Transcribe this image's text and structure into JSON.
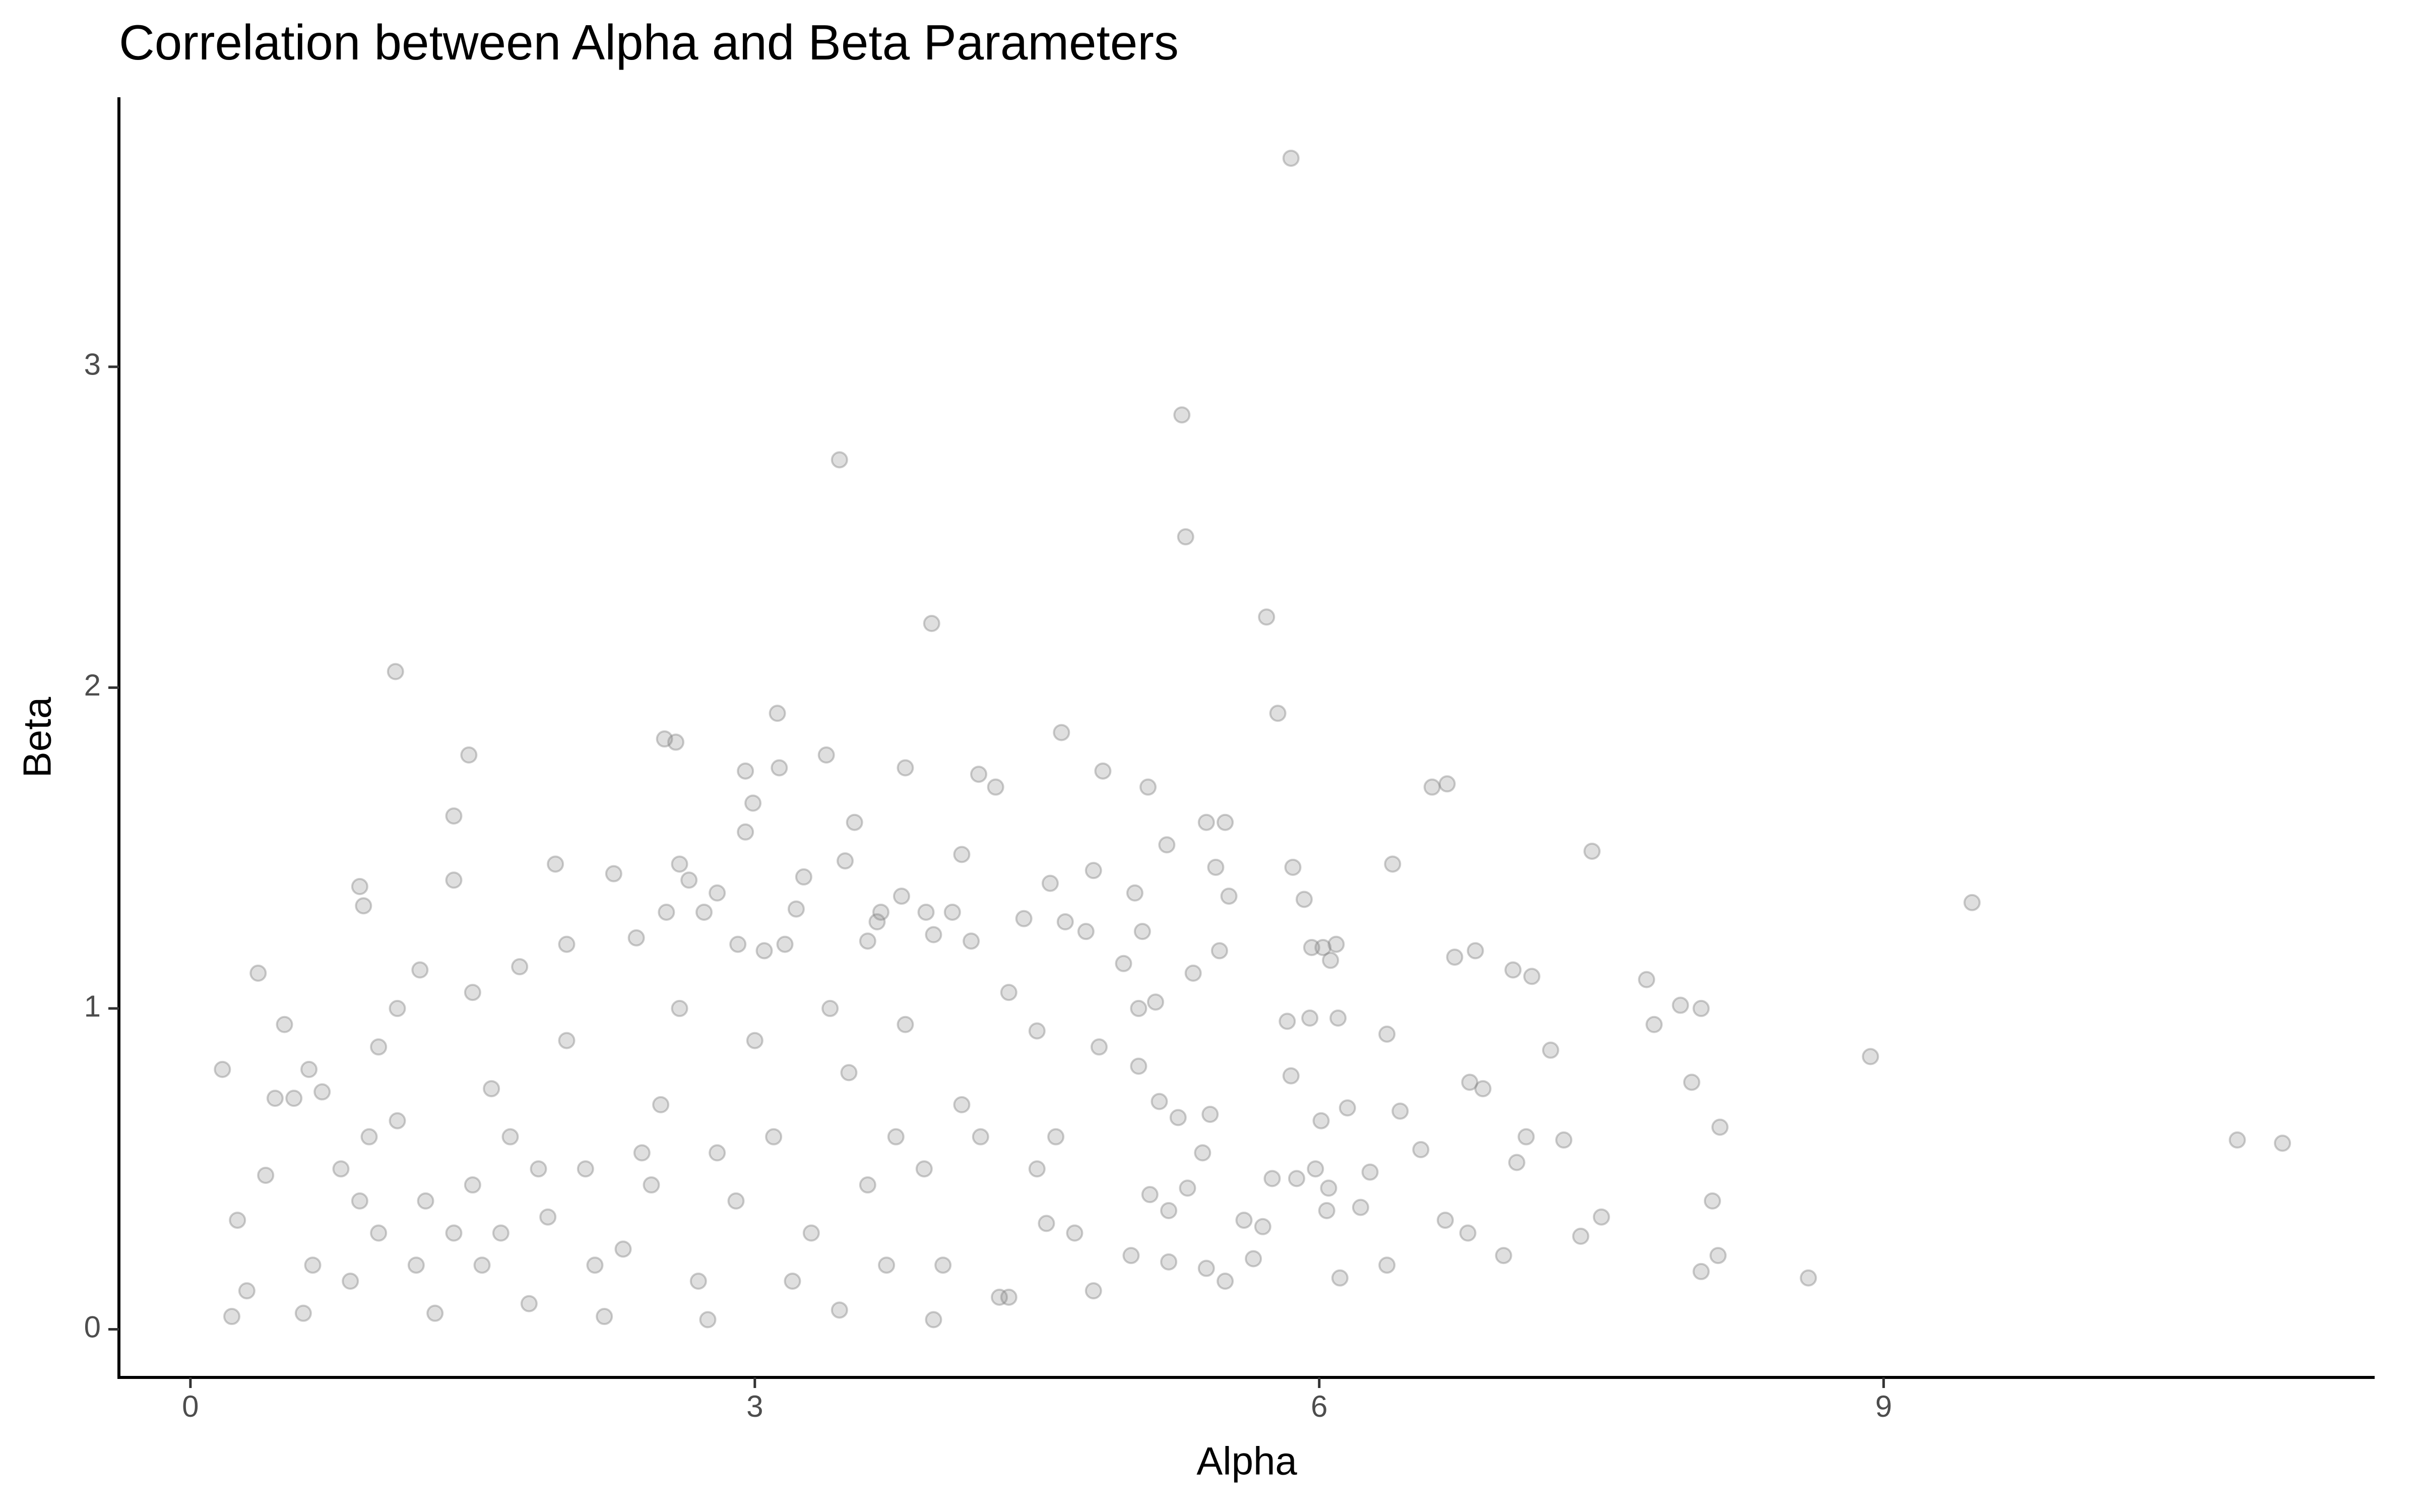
{
  "chart_data": {
    "type": "scatter",
    "title": "Correlation between Alpha and Beta Parameters",
    "x_label": "Alpha",
    "y_label": "Beta",
    "color": "#7f7f7f",
    "alpha": 0.25,
    "grid": false,
    "xlim": [
      -0.38,
      11.61
    ],
    "ylim": [
      -0.15,
      3.84
    ],
    "xticks": [
      0,
      3,
      6,
      9
    ],
    "yticks": [
      0,
      1,
      2,
      3
    ],
    "x": [
      0.17,
      0.36,
      0.22,
      0.25,
      0.5,
      0.63,
      0.9,
      0.92,
      1.09,
      1.4,
      1.4,
      1.48,
      1.94,
      2.52,
      2.58,
      2.6,
      3.12,
      3.45,
      3.94,
      3.53,
      3.8,
      4.63,
      4.85,
      5.27,
      5.29,
      5.85,
      5.72,
      5.78,
      6.6,
      6.68,
      7.45,
      9.47,
      10.88,
      11.12,
      8.93,
      8.6,
      8.03,
      7.98,
      8.13,
      8.12,
      8.03,
      8.09,
      7.74,
      7.78,
      7.92,
      7.5,
      7.39,
      7.3,
      7.23,
      7.03,
      7.13,
      7.1,
      7.05,
      6.98,
      6.83,
      6.72,
      6.8,
      6.87,
      6.67,
      6.79,
      6.39,
      6.36,
      6.43,
      6.54,
      6.36,
      6.15,
      6.1,
      6.22,
      6.27,
      6.11,
      5.96,
      6.02,
      6.09,
      6.06,
      5.92,
      5.86,
      5.83,
      5.95,
      5.85,
      6.01,
      6.05,
      6.04,
      5.98,
      5.88,
      5.7,
      5.75,
      5.5,
      5.45,
      5.52,
      5.47,
      5.33,
      5.4,
      5.19,
      5.09,
      5.06,
      5.04,
      5.13,
      5.02,
      4.57,
      4.65,
      4.76,
      4.8,
      4.96,
      4.83,
      5.04,
      5.15,
      5.25,
      5.42,
      5.38,
      5.3,
      5.2,
      5.1,
      5.0,
      5.2,
      5.4,
      5.5,
      5.65,
      5.6,
      4.7,
      4.8,
      4.55,
      4.5,
      4.35,
      4.43,
      4.28,
      4.19,
      4.1,
      4.15,
      4.05,
      3.91,
      3.95,
      3.78,
      3.6,
      3.67,
      3.65,
      3.48,
      3.38,
      3.26,
      3.13,
      2.99,
      2.95,
      2.95,
      2.91,
      3.05,
      3.16,
      3.22,
      2.73,
      2.8,
      2.65,
      2.53,
      2.37,
      2.25,
      2.0,
      1.75,
      1.5,
      1.22,
      1.1,
      1.0,
      0.7,
      0.45,
      0.55,
      0.8,
      0.9,
      1.0,
      1.2,
      1.5,
      1.7,
      1.9,
      2.1,
      2.3,
      2.5,
      2.7,
      2.9,
      3.1,
      3.3,
      3.5,
      3.7,
      3.9,
      4.1,
      4.3,
      4.5,
      0.3,
      0.4,
      0.6,
      0.65,
      1.3,
      1.8,
      2.2,
      2.75,
      3.45,
      3.95,
      4.35,
      1.6,
      2.0,
      2.4,
      2.6,
      3.0,
      3.4,
      3.8,
      4.2,
      1.4,
      1.1,
      2.8,
      3.6,
      4.0,
      4.6,
      1.25,
      1.55,
      1.85,
      2.15,
      2.45,
      3.2,
      3.75,
      0.85,
      0.95,
      1.65
    ],
    "values": [
      0.81,
      1.11,
      0.04,
      0.34,
      0.95,
      0.81,
      1.38,
      1.32,
      2.05,
      1.6,
      1.4,
      1.79,
      1.45,
      1.84,
      1.83,
      1.45,
      1.92,
      2.71,
      2.2,
      1.58,
      1.75,
      1.86,
      1.74,
      2.85,
      2.47,
      3.65,
      2.22,
      1.92,
      1.69,
      1.7,
      1.49,
      1.33,
      0.59,
      0.58,
      0.85,
      0.16,
      1.0,
      0.77,
      0.63,
      0.23,
      0.18,
      0.4,
      1.09,
      0.95,
      1.01,
      0.35,
      0.29,
      0.59,
      0.87,
      1.12,
      1.1,
      0.6,
      0.52,
      0.23,
      1.18,
      1.16,
      0.77,
      0.75,
      0.34,
      0.3,
      1.45,
      0.92,
      0.68,
      0.56,
      0.2,
      0.69,
      0.97,
      0.38,
      0.49,
      0.16,
      1.19,
      1.19,
      1.2,
      1.15,
      1.34,
      1.44,
      0.96,
      0.97,
      0.79,
      0.65,
      0.44,
      0.37,
      0.5,
      0.47,
      0.32,
      0.47,
      1.58,
      1.44,
      1.35,
      1.18,
      1.11,
      1.58,
      1.51,
      1.69,
      1.24,
      1.0,
      1.02,
      1.36,
      1.39,
      1.27,
      1.24,
      1.43,
      1.14,
      0.88,
      0.82,
      0.71,
      0.66,
      0.67,
      0.55,
      0.44,
      0.37,
      0.42,
      0.23,
      0.21,
      0.19,
      0.15,
      0.22,
      0.34,
      0.3,
      0.12,
      0.33,
      0.93,
      1.05,
      1.28,
      1.69,
      1.73,
      1.48,
      1.21,
      1.3,
      1.3,
      1.23,
      1.35,
      1.21,
      1.3,
      1.27,
      1.46,
      1.79,
      1.41,
      1.75,
      1.64,
      1.74,
      1.55,
      1.2,
      1.18,
      1.2,
      1.31,
      1.3,
      1.36,
      1.4,
      1.3,
      1.22,
      1.42,
      1.2,
      1.13,
      1.05,
      1.12,
      1.0,
      0.88,
      0.74,
      0.72,
      0.72,
      0.5,
      0.4,
      0.3,
      0.2,
      0.45,
      0.6,
      0.35,
      0.5,
      0.25,
      0.7,
      0.15,
      0.4,
      0.6,
      0.3,
      0.8,
      0.2,
      0.5,
      0.7,
      0.1,
      0.5,
      0.12,
      0.48,
      0.05,
      0.2,
      0.05,
      0.08,
      0.04,
      0.03,
      0.06,
      0.03,
      0.1,
      0.75,
      0.9,
      0.55,
      1.0,
      0.9,
      1.0,
      0.95,
      0.6,
      0.3,
      0.65,
      0.55,
      0.45,
      0.2,
      0.6,
      0.4,
      0.2,
      0.5,
      0.2,
      0.45,
      0.15,
      0.6,
      0.15,
      0.6,
      0.3
    ]
  }
}
